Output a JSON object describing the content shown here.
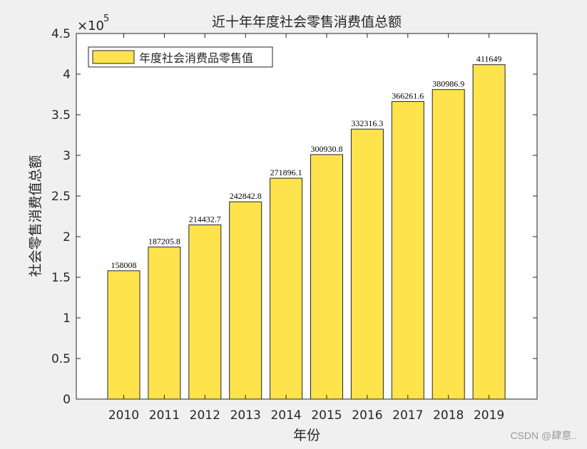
{
  "chart_data": {
    "type": "bar",
    "title": "近十年年度社会零售消费值总额",
    "xlabel": "年份",
    "ylabel": "社会零售消费值总额",
    "categories": [
      "2010",
      "2011",
      "2012",
      "2013",
      "2014",
      "2015",
      "2016",
      "2017",
      "2018",
      "2019"
    ],
    "series": [
      {
        "name": "年度社会消费品零售值",
        "values": [
          158008,
          187205.8,
          214432.7,
          242842.8,
          271896.1,
          300930.8,
          332316.3,
          366261.6,
          380986.9,
          411649
        ],
        "labels": [
          "158008",
          "187205.8",
          "214432.7",
          "242842.8",
          "271896.1",
          "300930.8",
          "332316.3",
          "366261.6",
          "380986.9",
          "411649"
        ]
      }
    ],
    "ylim": [
      0,
      450000
    ],
    "y_ticks": [
      0,
      50000,
      100000,
      150000,
      200000,
      250000,
      300000,
      350000,
      400000,
      450000
    ],
    "y_tick_labels": [
      "0",
      "0.5",
      "1",
      "1.5",
      "2",
      "2.5",
      "3",
      "3.5",
      "4",
      "4.5"
    ],
    "y_exponent_base": "×10",
    "y_exponent_power": "5",
    "legend_position": "top-left",
    "grid": false,
    "bar_color": "#ffe34d"
  },
  "watermark": "CSDN @肆意.."
}
